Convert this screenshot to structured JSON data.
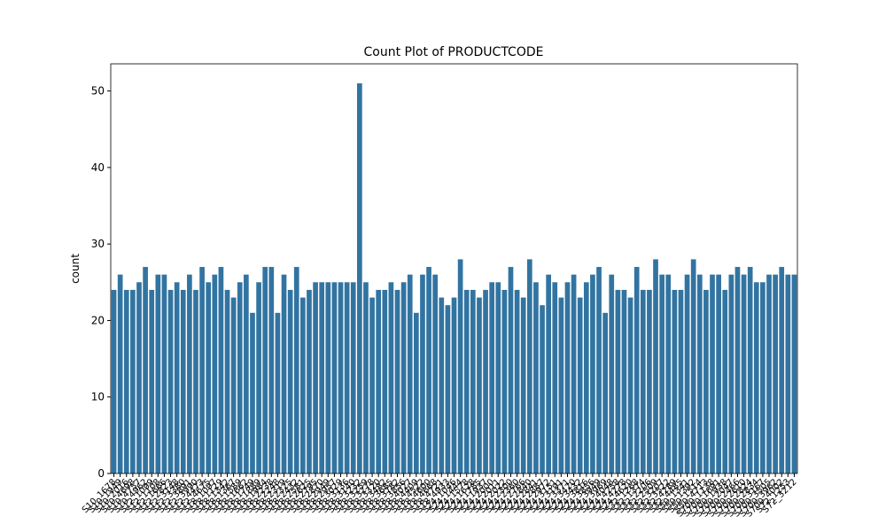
{
  "chart_data": {
    "type": "bar",
    "title": "Count Plot of PRODUCTCODE",
    "y_label": "count",
    "categories": [
      "S10_1678",
      "S10_1949",
      "S10_2016",
      "S10_4698",
      "S10_4757",
      "S10_4962",
      "S12_1099",
      "S12_1108",
      "S12_1666",
      "S12_2823",
      "S12_3148",
      "S12_3380",
      "S12_3891",
      "S12_3990",
      "S12_4473",
      "S12_4675",
      "S18_1097",
      "S18_1129",
      "S18_1342",
      "S18_1367",
      "S18_1589",
      "S18_1662",
      "S18_1749",
      "S18_1889",
      "S18_1984",
      "S18_2238",
      "S18_2248",
      "S18_2319",
      "S18_2325",
      "S18_2432",
      "S18_2581",
      "S18_2625",
      "S18_2795",
      "S18_2870",
      "S18_2949",
      "S18_2957",
      "S18_3029",
      "S18_3136",
      "S18_3140",
      "S18_3232",
      "S18_3259",
      "S18_3278",
      "S18_3320",
      "S18_3482",
      "S18_3685",
      "S18_3782",
      "S18_3856",
      "S18_4027",
      "S18_4409",
      "S18_4522",
      "S18_4600",
      "S18_4668",
      "S18_4721",
      "S18_4933",
      "S24_1046",
      "S24_1444",
      "S24_1578",
      "S24_1628",
      "S24_1785",
      "S24_1937",
      "S24_2000",
      "S24_2011",
      "S24_2022",
      "S24_2300",
      "S24_2360",
      "S24_2766",
      "S24_2840",
      "S24_2841",
      "S24_2887",
      "S24_2972",
      "S24_3151",
      "S24_3191",
      "S24_3371",
      "S24_3420",
      "S24_3432",
      "S24_3816",
      "S24_3856",
      "S24_3949",
      "S24_3969",
      "S24_4048",
      "S24_4258",
      "S24_4278",
      "S24_4620",
      "S32_1268",
      "S32_1374",
      "S32_2206",
      "S32_2509",
      "S32_3207",
      "S32_3522",
      "S32_4289",
      "S32_4485",
      "S50_1341",
      "S50_1392",
      "S50_1514",
      "S50_4713",
      "S700_1138",
      "S700_1691",
      "S700_1938",
      "S700_2047",
      "S700_2466",
      "S700_2610",
      "S700_2824",
      "S700_2834",
      "S700_3167",
      "S700_3505",
      "S700_3962",
      "S700_4002",
      "S72_1253",
      "S72_3212"
    ],
    "values": [
      24,
      26,
      24,
      24,
      25,
      27,
      24,
      26,
      26,
      24,
      25,
      24,
      26,
      24,
      27,
      25,
      26,
      27,
      24,
      23,
      25,
      26,
      21,
      25,
      27,
      27,
      21,
      26,
      24,
      27,
      23,
      24,
      25,
      25,
      25,
      25,
      25,
      25,
      25,
      51,
      25,
      23,
      24,
      24,
      25,
      24,
      25,
      26,
      21,
      26,
      27,
      26,
      23,
      22,
      23,
      28,
      24,
      24,
      23,
      24,
      25,
      25,
      24,
      27,
      24,
      23,
      28,
      25,
      22,
      26,
      25,
      23,
      25,
      26,
      23,
      25,
      26,
      27,
      21,
      26,
      24,
      24,
      23,
      27,
      24,
      24,
      28,
      26,
      26,
      24,
      24,
      26,
      28,
      26,
      24,
      26,
      26,
      24,
      26,
      27,
      26,
      27,
      25,
      25,
      26,
      26,
      27,
      26,
      26
    ],
    "color": "#3274a1",
    "ylim": [
      0,
      53.55
    ],
    "yticks": [
      0,
      10,
      20,
      30,
      40,
      50
    ]
  }
}
